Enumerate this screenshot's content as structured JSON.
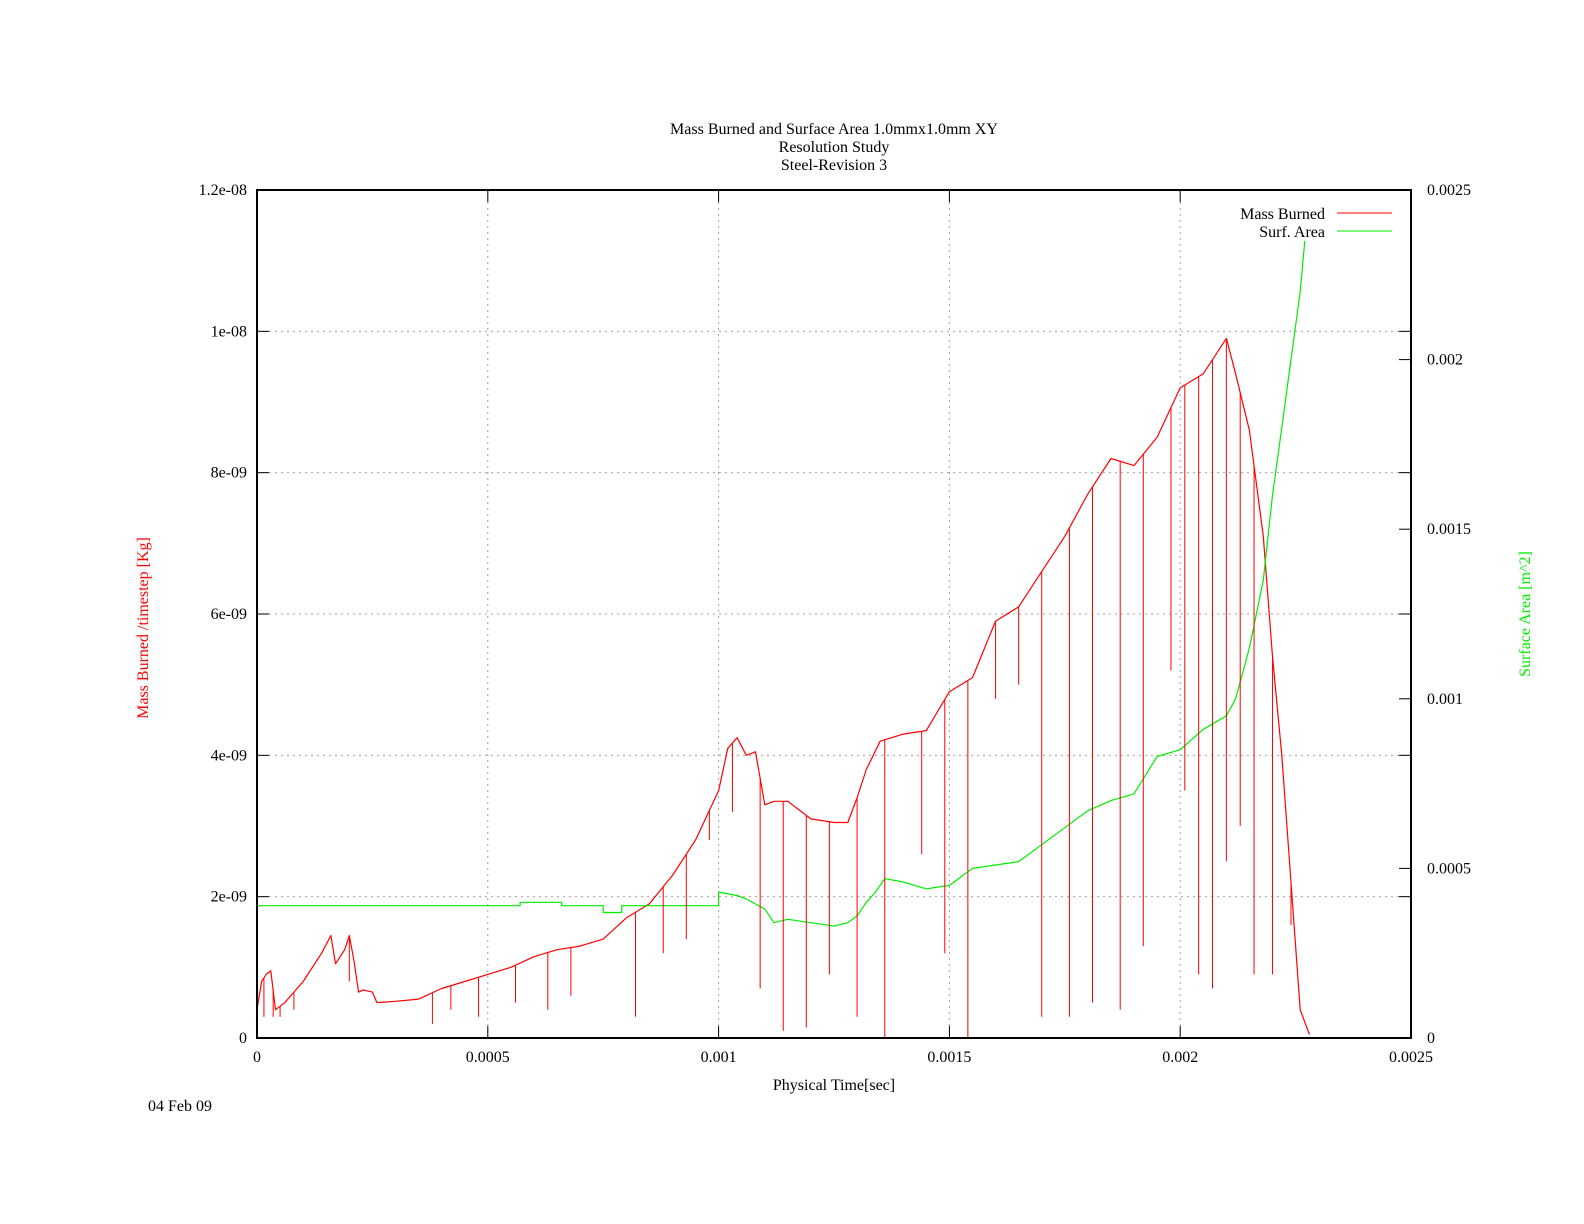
{
  "chart_data": {
    "type": "line",
    "title_lines": [
      "Mass Burned and Surface Area 1.0mmx1.0mm XY",
      "Resolution Study",
      "Steel-Revision 3"
    ],
    "xlabel": "Physical Time[sec]",
    "ylabel": "Mass Burned /timestep  [Kg]",
    "y2label": "Surface Area [m^2]",
    "date_label": "04 Feb 09",
    "xlim": [
      0,
      0.0025
    ],
    "ylim": [
      0,
      1.2e-08
    ],
    "y2lim": [
      0,
      0.0025
    ],
    "x_ticks": [
      "0",
      "0.0005",
      "0.001",
      "0.0015",
      "0.002",
      "0.0025"
    ],
    "y_ticks": [
      "0",
      "2e-09",
      "4e-09",
      "6e-09",
      "8e-09",
      "1e-08",
      "1.2e-08"
    ],
    "y2_ticks": [
      "0",
      "0.0005",
      "0.001",
      "0.0015",
      "0.002",
      "0.0025"
    ],
    "grid": true,
    "legend_position": "top-right",
    "colors": {
      "mass": "#ff0000",
      "area": "#00ee00",
      "axis": "#000000",
      "grid": "#a0a0a0"
    },
    "series": [
      {
        "name": "Mass Burned",
        "axis": "left",
        "color": "#ff0000",
        "x": [
          0,
          1e-05,
          2e-05,
          3e-05,
          4e-05,
          6e-05,
          8e-05,
          0.0001,
          0.00012,
          0.00014,
          0.00016,
          0.00017,
          0.00018,
          0.00019,
          0.0002,
          0.00021,
          0.00022,
          0.00023,
          0.00025,
          0.00026,
          0.0003,
          0.00035,
          0.0004,
          0.00045,
          0.0005,
          0.00055,
          0.0006,
          0.00065,
          0.0007,
          0.00075,
          0.0008,
          0.00085,
          0.0009,
          0.00095,
          0.001,
          0.00102,
          0.00104,
          0.00106,
          0.00108,
          0.0011,
          0.00112,
          0.00115,
          0.0012,
          0.00125,
          0.00128,
          0.0013,
          0.00132,
          0.00135,
          0.0014,
          0.00145,
          0.0015,
          0.00155,
          0.0016,
          0.00165,
          0.0017,
          0.00175,
          0.0018,
          0.00185,
          0.0019,
          0.00195,
          0.002,
          0.00205,
          0.0021,
          0.00212,
          0.00215,
          0.00218,
          0.0022,
          0.00222,
          0.00224,
          0.00226,
          0.00228
        ],
        "values": [
          4e-10,
          8e-10,
          9e-10,
          9.5e-10,
          4e-10,
          5e-10,
          6.5e-10,
          8e-10,
          1e-09,
          1.2e-09,
          1.45e-09,
          1.05e-09,
          1.15e-09,
          1.25e-09,
          1.45e-09,
          1.1e-09,
          6.5e-10,
          6.8e-10,
          6.5e-10,
          5e-10,
          5.2e-10,
          5.5e-10,
          7e-10,
          8e-10,
          9e-10,
          1e-09,
          1.15e-09,
          1.25e-09,
          1.3e-09,
          1.4e-09,
          1.7e-09,
          1.9e-09,
          2.3e-09,
          2.8e-09,
          3.5e-09,
          4.1e-09,
          4.25e-09,
          4e-09,
          4.05e-09,
          3.3e-09,
          3.35e-09,
          3.35e-09,
          3.1e-09,
          3.05e-09,
          3.05e-09,
          3.4e-09,
          3.8e-09,
          4.2e-09,
          4.3e-09,
          4.35e-09,
          4.9e-09,
          5.1e-09,
          5.9e-09,
          6.1e-09,
          6.6e-09,
          7.1e-09,
          7.7e-09,
          8.2e-09,
          8.1e-09,
          8.5e-09,
          9.2e-09,
          9.4e-09,
          9.9e-09,
          9.4e-09,
          8.6e-09,
          7.1e-09,
          5.4e-09,
          4e-09,
          2.2e-09,
          4e-10,
          5e-11
        ]
      },
      {
        "name": "Surf. Area",
        "axis": "right",
        "color": "#00ee00",
        "x": [
          0,
          0.0005,
          0.00057,
          0.00057,
          0.00066,
          0.00066,
          0.00075,
          0.00075,
          0.00079,
          0.00079,
          0.001,
          0.001,
          0.00104,
          0.00106,
          0.0011,
          0.00112,
          0.00115,
          0.0012,
          0.00125,
          0.00128,
          0.0013,
          0.00132,
          0.00134,
          0.00136,
          0.0014,
          0.00145,
          0.0015,
          0.00155,
          0.0016,
          0.00165,
          0.0017,
          0.00175,
          0.0018,
          0.00185,
          0.0019,
          0.00195,
          0.002,
          0.00205,
          0.0021,
          0.00212,
          0.00215,
          0.00218,
          0.0022,
          0.00222,
          0.00224,
          0.00226,
          0.00227
        ],
        "values": [
          0.00039,
          0.00039,
          0.00039,
          0.0004,
          0.0004,
          0.00039,
          0.00039,
          0.00037,
          0.00037,
          0.00039,
          0.00039,
          0.00043,
          0.00042,
          0.00041,
          0.00038,
          0.00034,
          0.00035,
          0.00034,
          0.00033,
          0.00034,
          0.00036,
          0.0004,
          0.00043,
          0.00047,
          0.00046,
          0.00044,
          0.00045,
          0.0005,
          0.00051,
          0.00052,
          0.00057,
          0.00062,
          0.00067,
          0.0007,
          0.00072,
          0.00083,
          0.00085,
          0.00091,
          0.00095,
          0.001,
          0.00115,
          0.00135,
          0.0016,
          0.0018,
          0.002,
          0.0022,
          0.00235
        ]
      }
    ],
    "dropouts": [
      {
        "x": 1.5e-05,
        "to": 3e-10
      },
      {
        "x": 3.5e-05,
        "to": 3e-10
      },
      {
        "x": 5e-05,
        "to": 3e-10
      },
      {
        "x": 8e-05,
        "to": 4e-10
      },
      {
        "x": 0.0002,
        "to": 8e-10
      },
      {
        "x": 0.00038,
        "to": 2e-10
      },
      {
        "x": 0.00042,
        "to": 4e-10
      },
      {
        "x": 0.00048,
        "to": 3e-10
      },
      {
        "x": 0.00056,
        "to": 5e-10
      },
      {
        "x": 0.00063,
        "to": 4e-10
      },
      {
        "x": 0.00068,
        "to": 6e-10
      },
      {
        "x": 0.00082,
        "to": 3e-10
      },
      {
        "x": 0.00088,
        "to": 1.2e-09
      },
      {
        "x": 0.00093,
        "to": 1.4e-09
      },
      {
        "x": 0.00098,
        "to": 2.8e-09
      },
      {
        "x": 0.00103,
        "to": 3.2e-09
      },
      {
        "x": 0.00109,
        "to": 7e-10
      },
      {
        "x": 0.00114,
        "to": 1e-10
      },
      {
        "x": 0.00119,
        "to": 1.5e-10
      },
      {
        "x": 0.00124,
        "to": 9e-10
      },
      {
        "x": 0.0013,
        "to": 3e-10
      },
      {
        "x": 0.00136,
        "to": 0
      },
      {
        "x": 0.00144,
        "to": 2.6e-09
      },
      {
        "x": 0.00149,
        "to": 1.2e-09
      },
      {
        "x": 0.00154,
        "to": 0
      },
      {
        "x": 0.0016,
        "to": 4.8e-09
      },
      {
        "x": 0.00165,
        "to": 5e-09
      },
      {
        "x": 0.0017,
        "to": 3e-10
      },
      {
        "x": 0.00176,
        "to": 3e-10
      },
      {
        "x": 0.00181,
        "to": 5e-10
      },
      {
        "x": 0.00187,
        "to": 4e-10
      },
      {
        "x": 0.00192,
        "to": 1.3e-09
      },
      {
        "x": 0.00198,
        "to": 5.2e-09
      },
      {
        "x": 0.00201,
        "to": 3.5e-09
      },
      {
        "x": 0.00204,
        "to": 9e-10
      },
      {
        "x": 0.00207,
        "to": 7e-10
      },
      {
        "x": 0.0021,
        "to": 2.5e-09
      },
      {
        "x": 0.00213,
        "to": 3e-09
      },
      {
        "x": 0.00216,
        "to": 9e-10
      },
      {
        "x": 0.0022,
        "to": 9e-10
      },
      {
        "x": 0.00224,
        "to": 1.6e-09
      }
    ]
  }
}
